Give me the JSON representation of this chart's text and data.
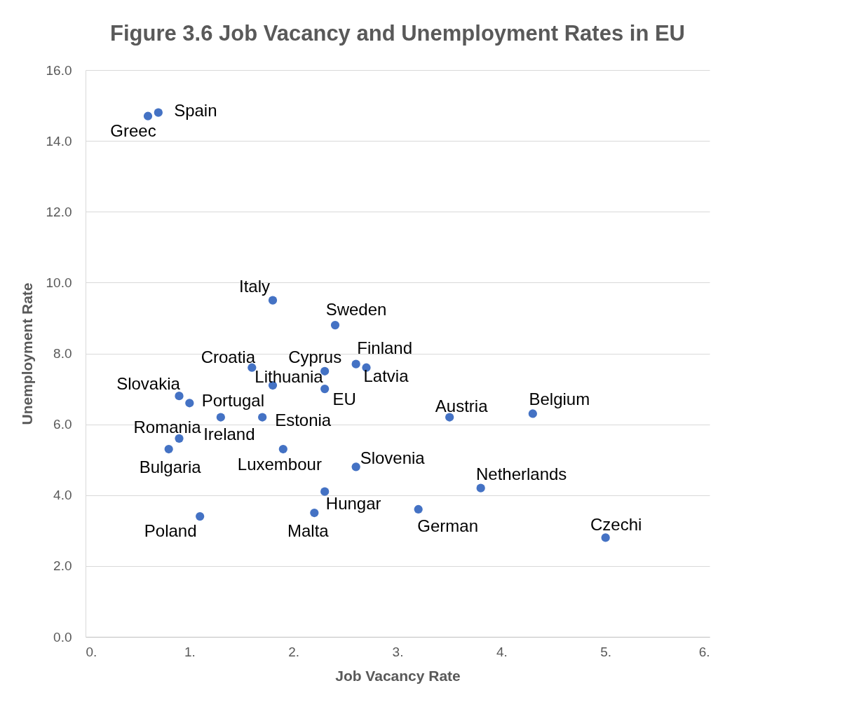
{
  "chart_data": {
    "type": "scatter",
    "title": "Figure 3.6 Job Vacancy and Unemployment Rates in EU",
    "xlabel": "Job Vacancy Rate",
    "ylabel": "Unemployment Rate",
    "x": [
      0.6,
      0.7,
      1.8,
      2.4,
      1.6,
      2.3,
      2.6,
      2.7,
      1.8,
      2.3,
      0.9,
      1.0,
      1.3,
      1.7,
      3.5,
      4.3,
      0.9,
      0.8,
      1.9,
      2.6,
      3.8,
      2.3,
      3.2,
      2.2,
      1.1,
      5.0
    ],
    "values": [
      14.7,
      14.8,
      9.5,
      8.8,
      7.6,
      7.5,
      7.7,
      7.6,
      7.1,
      7.0,
      6.8,
      6.6,
      6.2,
      6.2,
      6.2,
      6.3,
      5.6,
      5.3,
      5.3,
      4.8,
      4.2,
      4.1,
      3.6,
      3.5,
      3.4,
      2.8
    ],
    "value_labels": [
      "Greec",
      "Spain",
      "Italy",
      "Sweden",
      "Croatia",
      "Cyprus",
      "Finland",
      "Latvia",
      "Lithuania",
      "EU",
      "Slovakia",
      "Portugal",
      "Ireland",
      "Estonia",
      "Austria",
      "Belgium",
      "Romania",
      "Bulgaria",
      "Luxembour",
      "Slovenia",
      "Netherlands",
      "Hungar",
      "German",
      "Malta",
      "Poland",
      "Czechi"
    ],
    "color": "#4472c4",
    "marker": "circle",
    "xlim": [
      0,
      6
    ],
    "xticks": [
      {
        "value": 0,
        "label": "0."
      },
      {
        "value": 1,
        "label": "1."
      },
      {
        "value": 2,
        "label": "2."
      },
      {
        "value": 3,
        "label": "3."
      },
      {
        "value": 4,
        "label": "4."
      },
      {
        "value": 5,
        "label": "5."
      },
      {
        "value": 6,
        "label": "6."
      }
    ],
    "ylim": [
      0,
      16
    ],
    "yticks": [
      {
        "value": 0,
        "label": "0.0"
      },
      {
        "value": 2,
        "label": "2.0"
      },
      {
        "value": 4,
        "label": "4.0"
      },
      {
        "value": 6,
        "label": "6.0"
      },
      {
        "value": 8,
        "label": "8.0"
      },
      {
        "value": 10,
        "label": "10.0"
      },
      {
        "value": 12,
        "label": "12.0"
      },
      {
        "value": 14,
        "label": "14.0"
      },
      {
        "value": 16,
        "label": "16.0"
      }
    ],
    "grid": "y"
  }
}
